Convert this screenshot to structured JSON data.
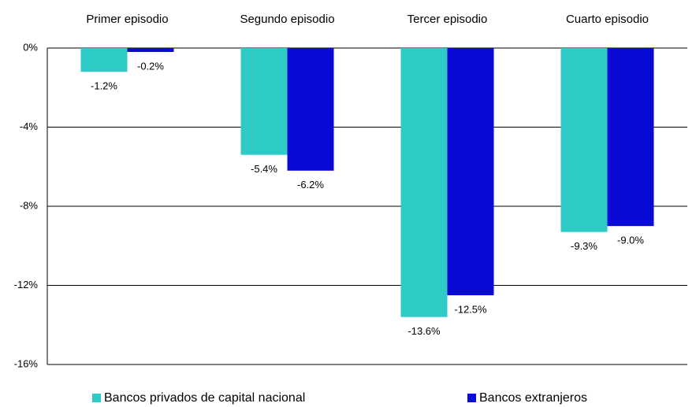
{
  "chart_data": {
    "type": "bar",
    "categories": [
      "Primer episodio",
      "Segundo episodio",
      "Tercer episodio",
      "Cuarto episodio"
    ],
    "series": [
      {
        "name": "Bancos privados de capital nacional",
        "color": "#2ecbc6",
        "values": [
          -1.2,
          -5.4,
          -13.6,
          -9.3
        ],
        "value_labels": [
          "-1.2%",
          "-5.4%",
          "-13.6%",
          "-9.3%"
        ]
      },
      {
        "name": "Bancos extranjeros",
        "color": "#0a0ad6",
        "values": [
          -0.2,
          -6.2,
          -12.5,
          -9.0
        ],
        "value_labels": [
          "-0.2%",
          "-6.2%",
          "-12.5%",
          "-9.0%"
        ]
      }
    ],
    "ylim": [
      -16,
      0
    ],
    "yticks": [
      {
        "value": 0,
        "label": "0%"
      },
      {
        "value": -4,
        "label": "-4%"
      },
      {
        "value": -8,
        "label": "-8%"
      },
      {
        "value": -12,
        "label": "-12%"
      },
      {
        "value": -16,
        "label": "-16%"
      }
    ],
    "grid": true,
    "legend": "bottom"
  }
}
